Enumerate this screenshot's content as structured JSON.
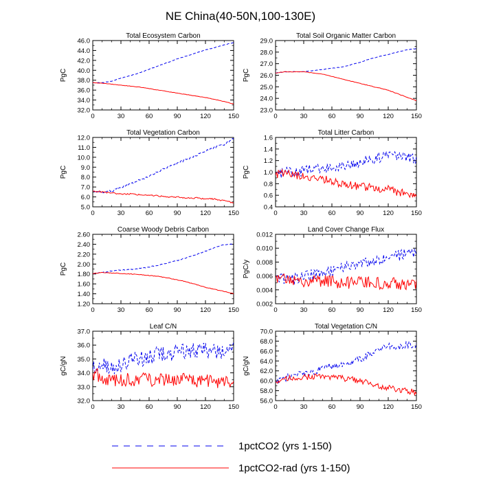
{
  "title": "NE China(40-50N,100-130E)",
  "legend": [
    {
      "label": "1pctCO2 (yrs 1-150)",
      "color": "#0000ee",
      "dash": "dashed"
    },
    {
      "label": "1pctCO2-rad (yrs 1-150)",
      "color": "#ff0000",
      "dash": "solid"
    }
  ],
  "chart_data": [
    {
      "type": "line",
      "title": "Total Ecosystem Carbon",
      "xlabel": "",
      "ylabel": "PgC",
      "xlim": [
        0,
        150
      ],
      "ylim": [
        32,
        46
      ],
      "xticks": [
        "0",
        "30",
        "60",
        "90",
        "120",
        "150"
      ],
      "yticks": [
        "32.0",
        "34.0",
        "36.0",
        "38.0",
        "40.0",
        "42.0",
        "44.0",
        "46.0"
      ],
      "x": [
        0,
        10,
        20,
        30,
        40,
        50,
        60,
        70,
        80,
        90,
        100,
        110,
        120,
        130,
        140,
        150
      ],
      "series": [
        {
          "name": "1pctCO2 (yrs 1-150)",
          "noise": 0.05,
          "values": [
            37.5,
            37.5,
            37.8,
            38.4,
            38.9,
            39.5,
            40.2,
            40.9,
            41.6,
            42.3,
            42.9,
            43.5,
            44.1,
            44.6,
            45.1,
            45.6
          ]
        },
        {
          "name": "1pctCO2-rad (yrs 1-150)",
          "noise": 0.04,
          "values": [
            37.5,
            37.4,
            37.2,
            37.0,
            36.8,
            36.6,
            36.3,
            36.0,
            35.7,
            35.4,
            35.1,
            34.8,
            34.5,
            34.1,
            33.7,
            33.2
          ]
        }
      ]
    },
    {
      "type": "line",
      "title": "Total Soil Organic Matter Carbon",
      "xlabel": "",
      "ylabel": "PgC",
      "xlim": [
        0,
        150
      ],
      "ylim": [
        23,
        29
      ],
      "xticks": [
        "0",
        "30",
        "60",
        "90",
        "120",
        "150"
      ],
      "yticks": [
        "23.0",
        "24.0",
        "25.0",
        "26.0",
        "27.0",
        "28.0",
        "29.0"
      ],
      "x": [
        0,
        10,
        20,
        30,
        40,
        50,
        60,
        70,
        80,
        90,
        100,
        110,
        120,
        130,
        140,
        150
      ],
      "series": [
        {
          "name": "1pctCO2 (yrs 1-150)",
          "noise": 0.02,
          "values": [
            26.2,
            26.3,
            26.3,
            26.3,
            26.4,
            26.5,
            26.6,
            26.7,
            26.9,
            27.1,
            27.4,
            27.6,
            27.8,
            28.0,
            28.2,
            28.3
          ]
        },
        {
          "name": "1pctCO2-rad (yrs 1-150)",
          "noise": 0.02,
          "values": [
            26.2,
            26.3,
            26.3,
            26.3,
            26.2,
            26.1,
            25.9,
            25.7,
            25.5,
            25.3,
            25.1,
            24.9,
            24.7,
            24.4,
            24.1,
            23.8
          ]
        }
      ]
    },
    {
      "type": "line",
      "title": "Total Vegetation Carbon",
      "xlabel": "",
      "ylabel": "PgC",
      "xlim": [
        0,
        150
      ],
      "ylim": [
        5,
        12
      ],
      "xticks": [
        "0",
        "30",
        "60",
        "90",
        "120",
        "150"
      ],
      "yticks": [
        "5.0",
        "6.0",
        "7.0",
        "8.0",
        "9.0",
        "10.0",
        "11.0",
        "12.0"
      ],
      "x": [
        0,
        10,
        20,
        30,
        40,
        50,
        60,
        70,
        80,
        90,
        100,
        110,
        120,
        130,
        140,
        150
      ],
      "series": [
        {
          "name": "1pctCO2 (yrs 1-150)",
          "noise": 0.1,
          "values": [
            6.6,
            6.5,
            6.6,
            6.9,
            7.3,
            7.7,
            8.1,
            8.6,
            9.0,
            9.4,
            9.8,
            10.2,
            10.6,
            11.0,
            11.3,
            11.9
          ]
        },
        {
          "name": "1pctCO2-rad (yrs 1-150)",
          "noise": 0.07,
          "values": [
            6.6,
            6.5,
            6.4,
            6.3,
            6.3,
            6.2,
            6.2,
            6.1,
            6.0,
            6.0,
            5.9,
            5.9,
            5.8,
            5.8,
            5.6,
            5.4
          ]
        }
      ]
    },
    {
      "type": "line",
      "title": "Total Litter Carbon",
      "xlabel": "",
      "ylabel": "PgC",
      "xlim": [
        0,
        150
      ],
      "ylim": [
        0.4,
        1.6
      ],
      "xticks": [
        "0",
        "30",
        "60",
        "90",
        "120",
        "150"
      ],
      "yticks": [
        "0.4",
        "0.6",
        "0.8",
        "1.0",
        "1.2",
        "1.4",
        "1.6"
      ],
      "x": [
        0,
        10,
        20,
        30,
        40,
        50,
        60,
        70,
        80,
        90,
        100,
        110,
        120,
        130,
        140,
        150
      ],
      "series": [
        {
          "name": "1pctCO2 (yrs 1-150)",
          "noise": 0.09,
          "values": [
            0.95,
            1.0,
            0.98,
            1.02,
            1.05,
            1.07,
            1.08,
            1.1,
            1.12,
            1.18,
            1.2,
            1.25,
            1.3,
            1.25,
            1.28,
            1.22
          ]
        },
        {
          "name": "1pctCO2-rad (yrs 1-150)",
          "noise": 0.07,
          "values": [
            0.95,
            1.0,
            0.95,
            0.92,
            0.9,
            0.88,
            0.85,
            0.8,
            0.78,
            0.75,
            0.74,
            0.72,
            0.7,
            0.66,
            0.64,
            0.6
          ]
        }
      ]
    },
    {
      "type": "line",
      "title": "Coarse Woody Debris Carbon",
      "xlabel": "",
      "ylabel": "PgC",
      "xlim": [
        0,
        150
      ],
      "ylim": [
        1.2,
        2.6
      ],
      "xticks": [
        "0",
        "30",
        "60",
        "90",
        "120",
        "150"
      ],
      "yticks": [
        "1.20",
        "1.40",
        "1.60",
        "1.80",
        "2.00",
        "2.20",
        "2.40",
        "2.60"
      ],
      "x": [
        0,
        10,
        20,
        30,
        40,
        50,
        60,
        70,
        80,
        90,
        100,
        110,
        120,
        130,
        140,
        150
      ],
      "series": [
        {
          "name": "1pctCO2 (yrs 1-150)",
          "noise": 0.008,
          "values": [
            1.81,
            1.83,
            1.86,
            1.88,
            1.89,
            1.91,
            1.94,
            1.98,
            2.02,
            2.07,
            2.13,
            2.19,
            2.26,
            2.33,
            2.39,
            2.41
          ]
        },
        {
          "name": "1pctCO2-rad (yrs 1-150)",
          "noise": 0.006,
          "values": [
            1.81,
            1.83,
            1.82,
            1.81,
            1.8,
            1.79,
            1.77,
            1.75,
            1.72,
            1.68,
            1.64,
            1.59,
            1.53,
            1.49,
            1.45,
            1.4
          ]
        }
      ]
    },
    {
      "type": "line",
      "title": "Land Cover Change Flux",
      "xlabel": "",
      "ylabel": "PgC/y",
      "xlim": [
        0,
        150
      ],
      "ylim": [
        0.002,
        0.012
      ],
      "xticks": [
        "0",
        "30",
        "60",
        "90",
        "120",
        "150"
      ],
      "yticks": [
        "0.002",
        "0.004",
        "0.006",
        "0.008",
        "0.010",
        "0.012"
      ],
      "x": [
        0,
        10,
        20,
        30,
        40,
        50,
        60,
        70,
        80,
        90,
        100,
        110,
        120,
        130,
        140,
        150
      ],
      "series": [
        {
          "name": "1pctCO2 (yrs 1-150)",
          "noise": 0.0008,
          "values": [
            0.0058,
            0.0055,
            0.0056,
            0.006,
            0.0062,
            0.0065,
            0.0068,
            0.0071,
            0.0075,
            0.0078,
            0.008,
            0.0083,
            0.0087,
            0.0089,
            0.0092,
            0.0094
          ]
        },
        {
          "name": "1pctCO2-rad (yrs 1-150)",
          "noise": 0.0009,
          "values": [
            0.0058,
            0.0055,
            0.0054,
            0.0053,
            0.0052,
            0.0052,
            0.0051,
            0.0051,
            0.005,
            0.005,
            0.005,
            0.0049,
            0.0049,
            0.0049,
            0.0049,
            0.0049
          ]
        }
      ]
    },
    {
      "type": "line",
      "title": "Leaf C/N",
      "xlabel": "",
      "ylabel": "gC/gN",
      "xlim": [
        0,
        150
      ],
      "ylim": [
        32,
        37
      ],
      "xticks": [
        "0",
        "30",
        "60",
        "90",
        "120",
        "150"
      ],
      "yticks": [
        "32.0",
        "33.0",
        "34.0",
        "35.0",
        "36.0",
        "37.0"
      ],
      "x": [
        0,
        10,
        20,
        30,
        40,
        50,
        60,
        70,
        80,
        90,
        100,
        110,
        120,
        130,
        140,
        150
      ],
      "series": [
        {
          "name": "1pctCO2 (yrs 1-150)",
          "noise": 0.6,
          "values": [
            34.2,
            34.6,
            34.4,
            34.6,
            34.8,
            35.0,
            35.2,
            35.3,
            35.4,
            35.5,
            35.6,
            35.6,
            35.6,
            35.6,
            35.6,
            35.6
          ]
        },
        {
          "name": "1pctCO2-rad (yrs 1-150)",
          "noise": 0.5,
          "values": [
            34.0,
            33.7,
            33.5,
            33.5,
            33.5,
            33.5,
            33.5,
            33.5,
            33.5,
            33.5,
            33.5,
            33.4,
            33.4,
            33.4,
            33.4,
            33.4
          ]
        }
      ]
    },
    {
      "type": "line",
      "title": "Total Vegetation C/N",
      "xlabel": "",
      "ylabel": "gC/gN",
      "xlim": [
        0,
        150
      ],
      "ylim": [
        56,
        70
      ],
      "xticks": [
        "0",
        "30",
        "60",
        "90",
        "120",
        "150"
      ],
      "yticks": [
        "56.0",
        "58.0",
        "60.0",
        "62.0",
        "64.0",
        "66.0",
        "68.0",
        "70.0"
      ],
      "x": [
        0,
        10,
        20,
        30,
        40,
        50,
        60,
        70,
        80,
        90,
        100,
        110,
        120,
        130,
        140,
        150
      ],
      "series": [
        {
          "name": "1pctCO2 (yrs 1-150)",
          "noise": 0.7,
          "values": [
            59.8,
            60.5,
            61.2,
            61.2,
            61.8,
            62.5,
            63.0,
            63.4,
            63.8,
            64.4,
            65.3,
            66.5,
            67.0,
            66.8,
            67.2,
            67.3
          ]
        },
        {
          "name": "1pctCO2-rad (yrs 1-150)",
          "noise": 0.6,
          "values": [
            59.8,
            60.4,
            60.6,
            60.7,
            60.8,
            60.7,
            60.6,
            60.5,
            60.3,
            60.0,
            59.6,
            59.0,
            58.6,
            58.3,
            58.0,
            57.6
          ]
        }
      ]
    }
  ]
}
